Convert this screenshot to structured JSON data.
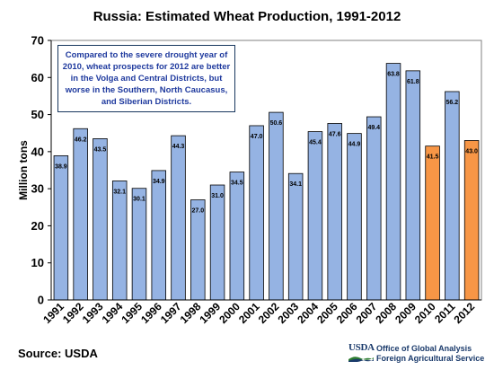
{
  "chart_data": {
    "type": "bar",
    "title": "Russia:  Estimated Wheat Production, 1991-2012",
    "ylabel": "Million tons",
    "xlabel": "",
    "ylim": [
      0,
      70
    ],
    "yticks": [
      0,
      10,
      20,
      30,
      40,
      50,
      60,
      70
    ],
    "grid": false,
    "categories": [
      "1991",
      "1992",
      "1993",
      "1994",
      "1995",
      "1996",
      "1997",
      "1998",
      "1999",
      "2000",
      "2001",
      "2002",
      "2003",
      "2004",
      "2005",
      "2006",
      "2007",
      "2008",
      "2009",
      "2010",
      "2011",
      "2012"
    ],
    "values": [
      38.9,
      46.2,
      43.5,
      32.1,
      30.1,
      34.9,
      44.3,
      27.0,
      31.0,
      34.5,
      47.0,
      50.6,
      34.1,
      45.4,
      47.6,
      44.9,
      49.4,
      63.8,
      61.8,
      41.5,
      56.2,
      43.0
    ],
    "data_labels": [
      "38.9",
      "46.2",
      "43.5",
      "32.1",
      "30.1",
      "34.9",
      "44.3",
      "27.0",
      "31.0",
      "34.5",
      "47.0",
      "50.6",
      "34.1",
      "45.4",
      "47.6",
      "44.9",
      "49.4",
      "63.8",
      "61.8",
      "41.5",
      "56.2",
      "43.0"
    ],
    "highlighted": [
      "2010",
      "2012"
    ],
    "colors": {
      "default_bar": "#95b3e3",
      "highlight_bar": "#f79646",
      "bar_outline": "#000000",
      "annotation_text": "#1f3a9e"
    },
    "annotation": "Compared to the severe drought year of 2010, wheat prospects for 2012 are better in the Volga and Central Districts, but worse in the Southern, North Caucasus, and Siberian Districts."
  },
  "footer": {
    "source": "Source:  USDA",
    "logo_text": "USDA",
    "agency_line_1": "Office of Global Analysis",
    "agency_line_2": "Foreign Agricultural Service"
  }
}
